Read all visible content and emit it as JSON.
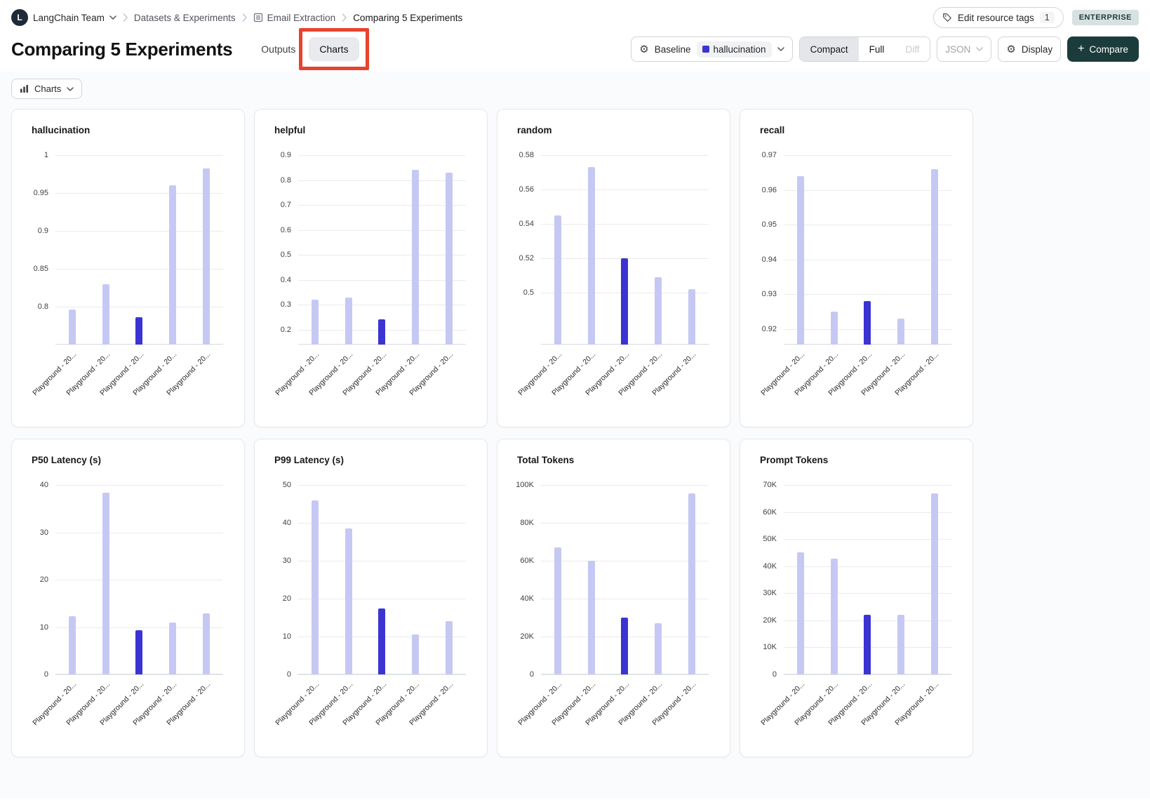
{
  "breadcrumb": {
    "team_initial": "L",
    "team": "LangChain Team",
    "items": [
      "Datasets & Experiments",
      "Email Extraction",
      "Comparing 5 Experiments"
    ]
  },
  "topbar": {
    "edit_tags_label": "Edit resource tags",
    "edit_tags_count": "1",
    "enterprise_badge": "ENTERPRISE"
  },
  "header": {
    "title": "Comparing 5 Experiments",
    "tabs": [
      {
        "label": "Outputs",
        "active": false
      },
      {
        "label": "Charts",
        "active": true
      }
    ],
    "baseline": {
      "label": "Baseline",
      "value": "hallucination"
    },
    "view_modes": [
      {
        "label": "Compact",
        "state": "selected"
      },
      {
        "label": "Full",
        "state": "normal"
      },
      {
        "label": "Diff",
        "state": "disabled"
      }
    ],
    "json_label": "JSON",
    "display_label": "Display",
    "compare_label": "Compare"
  },
  "toolbar": {
    "charts_label": "Charts"
  },
  "colors": {
    "bar_light": "#c6c8f4",
    "bar_highlight": "#3b34d2",
    "accent_dark": "#1c3c3c",
    "annotation_red": "#e8432d"
  },
  "chart_data": [
    {
      "type": "bar",
      "title": "hallucination",
      "categories": [
        "Playground - 20...",
        "Playground - 20...",
        "Playground - 20...",
        "Playground - 20...",
        "Playground - 20..."
      ],
      "values": [
        0.796,
        0.83,
        0.786,
        0.96,
        0.982
      ],
      "highlight_index": 2,
      "ylim": [
        0.75,
        1
      ],
      "yticks": [
        1,
        0.95,
        0.9,
        0.85,
        0.8
      ],
      "ytick_labels": [
        "1",
        "0.95",
        "0.9",
        "0.85",
        "0.8"
      ],
      "legend": "none",
      "grid": true
    },
    {
      "type": "bar",
      "title": "helpful",
      "categories": [
        "Playground - 20...",
        "Playground - 20...",
        "Playground - 20...",
        "Playground - 20...",
        "Playground - 20..."
      ],
      "values": [
        0.32,
        0.33,
        0.24,
        0.84,
        0.83
      ],
      "highlight_index": 2,
      "ylim": [
        0.14,
        0.9
      ],
      "yticks": [
        0.9,
        0.8,
        0.7,
        0.6,
        0.5,
        0.4,
        0.3,
        0.2
      ],
      "ytick_labels": [
        "0.9",
        "0.8",
        "0.7",
        "0.6",
        "0.5",
        "0.4",
        "0.3",
        "0.2"
      ],
      "legend": "none",
      "grid": true
    },
    {
      "type": "bar",
      "title": "random",
      "categories": [
        "Playground - 20...",
        "Playground - 20...",
        "Playground - 20...",
        "Playground - 20...",
        "Playground - 20..."
      ],
      "values": [
        0.545,
        0.573,
        0.52,
        0.509,
        0.502
      ],
      "highlight_index": 2,
      "ylim": [
        0.47,
        0.58
      ],
      "yticks": [
        0.58,
        0.56,
        0.54,
        0.52,
        0.5
      ],
      "ytick_labels": [
        "0.58",
        "0.56",
        "0.54",
        "0.52",
        "0.5"
      ],
      "legend": "none",
      "grid": true
    },
    {
      "type": "bar",
      "title": "recall",
      "categories": [
        "Playground - 20...",
        "Playground - 20...",
        "Playground - 20...",
        "Playground - 20...",
        "Playground - 20..."
      ],
      "values": [
        0.964,
        0.925,
        0.928,
        0.923,
        0.966
      ],
      "highlight_index": 2,
      "ylim": [
        0.9155,
        0.97
      ],
      "yticks": [
        0.97,
        0.96,
        0.95,
        0.94,
        0.93,
        0.92
      ],
      "ytick_labels": [
        "0.97",
        "0.96",
        "0.95",
        "0.94",
        "0.93",
        "0.92"
      ],
      "legend": "none",
      "grid": true
    },
    {
      "type": "bar",
      "title": "P50 Latency (s)",
      "categories": [
        "Playground - 20...",
        "Playground - 20...",
        "Playground - 20...",
        "Playground - 20...",
        "Playground - 20..."
      ],
      "values": [
        12.3,
        38.3,
        9.3,
        11,
        12.9
      ],
      "highlight_index": 2,
      "ylim": [
        0,
        40
      ],
      "yticks": [
        40,
        30,
        20,
        10,
        0
      ],
      "ytick_labels": [
        "40",
        "30",
        "20",
        "10",
        "0"
      ],
      "legend": "none",
      "grid": true
    },
    {
      "type": "bar",
      "title": "P99 Latency (s)",
      "categories": [
        "Playground - 20...",
        "Playground - 20...",
        "Playground - 20...",
        "Playground - 20...",
        "Playground - 20..."
      ],
      "values": [
        46,
        38.5,
        17.5,
        10.5,
        14
      ],
      "highlight_index": 2,
      "ylim": [
        0,
        50
      ],
      "yticks": [
        50,
        40,
        30,
        20,
        10,
        0
      ],
      "ytick_labels": [
        "50",
        "40",
        "30",
        "20",
        "10",
        "0"
      ],
      "legend": "none",
      "grid": true
    },
    {
      "type": "bar",
      "title": "Total Tokens",
      "categories": [
        "Playground - 20...",
        "Playground - 20...",
        "Playground - 20...",
        "Playground - 20...",
        "Playground - 20..."
      ],
      "values": [
        67000,
        60000,
        30000,
        27000,
        95500
      ],
      "highlight_index": 2,
      "ylim": [
        0,
        100000
      ],
      "yticks": [
        100000,
        80000,
        60000,
        40000,
        20000,
        0
      ],
      "ytick_labels": [
        "100K",
        "80K",
        "60K",
        "40K",
        "20K",
        "0"
      ],
      "legend": "none",
      "grid": true
    },
    {
      "type": "bar",
      "title": "Prompt Tokens",
      "categories": [
        "Playground - 20...",
        "Playground - 20...",
        "Playground - 20...",
        "Playground - 20...",
        "Playground - 20..."
      ],
      "values": [
        45000,
        42700,
        22000,
        22000,
        67000
      ],
      "highlight_index": 2,
      "ylim": [
        0,
        70000
      ],
      "yticks": [
        70000,
        60000,
        50000,
        40000,
        30000,
        20000,
        10000,
        0
      ],
      "ytick_labels": [
        "70K",
        "60K",
        "50K",
        "40K",
        "30K",
        "20K",
        "10K",
        "0"
      ],
      "legend": "none",
      "grid": true
    }
  ]
}
